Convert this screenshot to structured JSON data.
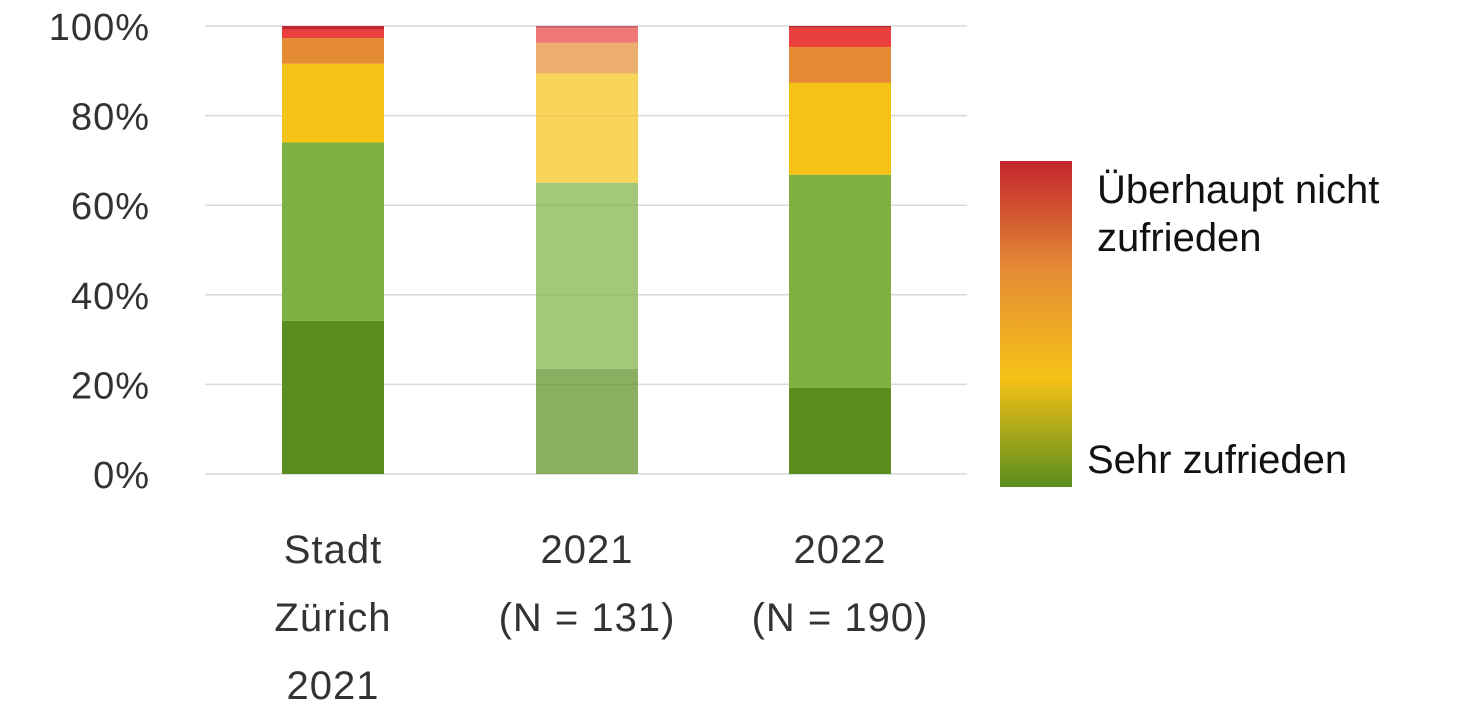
{
  "chart_data": {
    "type": "bar",
    "stacked": true,
    "grid": true,
    "legend_placement": "right",
    "ylim": [
      0,
      100
    ],
    "y_ticks": [
      "0%",
      "20%",
      "40%",
      "60%",
      "80%",
      "100%"
    ],
    "categories": [
      {
        "lines": [
          "Stadt",
          "Zürich",
          "2021"
        ],
        "faded": false
      },
      {
        "lines": [
          "2021",
          "(N = 131)"
        ],
        "faded": true
      },
      {
        "lines": [
          "2022",
          "(N = 190)"
        ],
        "faded": false
      }
    ],
    "series": [
      {
        "color": "#5a8d1e",
        "values": [
          34.2,
          23.5,
          19.2
        ]
      },
      {
        "color": "#7db141",
        "values": [
          39.8,
          41.5,
          47.6
        ]
      },
      {
        "color": "#f6c216",
        "values": [
          17.6,
          24.4,
          20.5
        ]
      },
      {
        "color": "#e48b33",
        "values": [
          5.7,
          6.9,
          8.0
        ]
      },
      {
        "color": "#e9403e",
        "values": [
          1.9,
          3.2,
          4.3
        ]
      },
      {
        "color": "#c3262d",
        "values": [
          0.8,
          0.5,
          0.4
        ]
      }
    ],
    "legend": {
      "top_label": [
        "Überhaupt nicht",
        "zufrieden"
      ],
      "bottom_label": "Sehr zufrieden",
      "gradient": [
        "#c3262d",
        "#e48b33",
        "#f6c216",
        "#5a8d1e"
      ]
    }
  }
}
